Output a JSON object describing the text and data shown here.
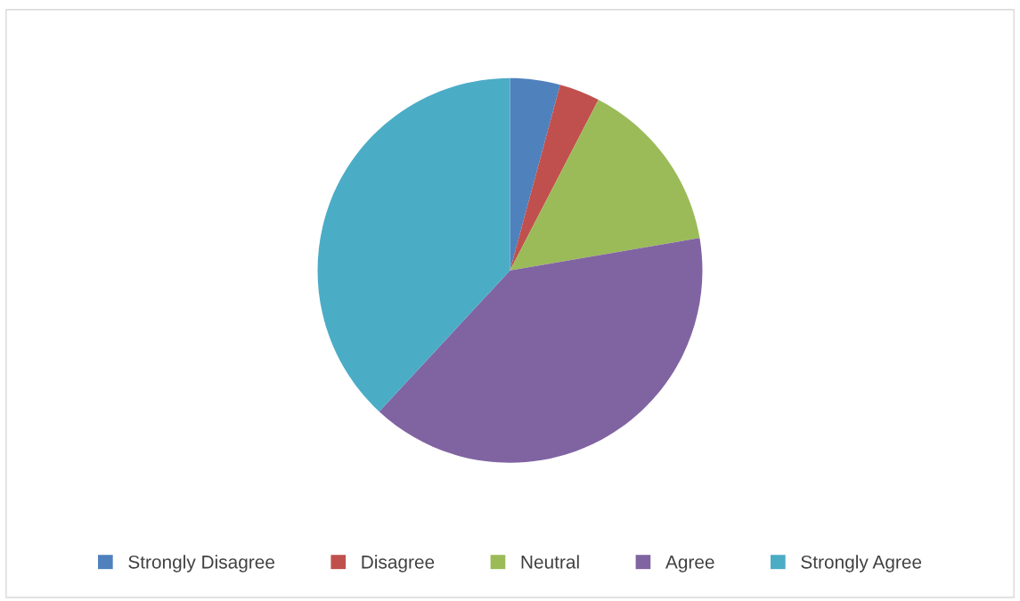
{
  "chart_data": {
    "type": "pie",
    "categories": [
      "Strongly Disagree",
      "Disagree",
      "Neutral",
      "Agree",
      "Strongly Agree"
    ],
    "values": [
      4.2,
      3.4,
      14.7,
      39.6,
      38.1
    ],
    "colors": [
      "#4f81bd",
      "#c0504d",
      "#9bbb59",
      "#8064a2",
      "#4bacc6"
    ],
    "legend": "bottom"
  }
}
